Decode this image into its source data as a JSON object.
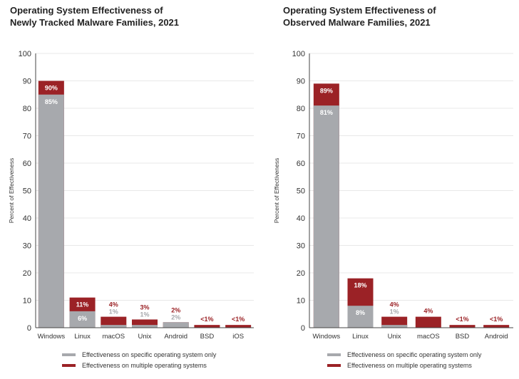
{
  "colors": {
    "specific": "#a7a9ad",
    "multiple": "#9b2226",
    "axis": "#444444",
    "grid": "#e8e8e8",
    "inside_label": "#ffffff",
    "specific_label": "#a7a9ad",
    "multiple_label": "#9b2226"
  },
  "legend": {
    "specific": "Effectiveness on specific operating system only",
    "multiple": "Effectiveness on multiple operating systems"
  },
  "chart_data": [
    {
      "type": "bar",
      "title_line1": "Operating System Effectiveness of",
      "title_line2": "Newly Tracked Malware Families, 2021",
      "ylabel": "Percent of Effectiveness",
      "ylim": [
        0,
        100
      ],
      "yticks": [
        0,
        10,
        20,
        30,
        40,
        50,
        60,
        70,
        80,
        90,
        100
      ],
      "categories": [
        "Windows",
        "Linux",
        "macOS",
        "Unix",
        "Android",
        "BSD",
        "iOS"
      ],
      "series": [
        {
          "name": "Effectiveness on specific operating system only",
          "values": [
            85,
            6,
            1,
            1,
            2,
            0,
            0
          ]
        },
        {
          "name": "Effectiveness on multiple operating systems",
          "values": [
            90,
            11,
            4,
            3,
            2,
            1,
            1
          ]
        }
      ],
      "labels_multiple": [
        "90%",
        "11%",
        "4%",
        "3%",
        "2%",
        "<1%",
        "<1%"
      ],
      "labels_specific": [
        "85%",
        "6%",
        "1%",
        "1%",
        "2%",
        "",
        ""
      ]
    },
    {
      "type": "bar",
      "title_line1": "Operating System Effectiveness of",
      "title_line2": "Observed Malware Families, 2021",
      "ylabel": "Percent of Effectiveness",
      "ylim": [
        0,
        100
      ],
      "yticks": [
        0,
        10,
        20,
        30,
        40,
        50,
        60,
        70,
        80,
        90,
        100
      ],
      "categories": [
        "Windows",
        "Linux",
        "Unix",
        "macOS",
        "BSD",
        "Android"
      ],
      "series": [
        {
          "name": "Effectiveness on specific operating system only",
          "values": [
            81,
            8,
            1,
            0,
            0,
            0
          ]
        },
        {
          "name": "Effectiveness on multiple operating systems",
          "values": [
            89,
            18,
            4,
            4,
            1,
            1
          ]
        }
      ],
      "labels_multiple": [
        "89%",
        "18%",
        "4%",
        "4%",
        "<1%",
        "<1%"
      ],
      "labels_specific": [
        "81%",
        "8%",
        "1%",
        "",
        "",
        ""
      ]
    }
  ]
}
